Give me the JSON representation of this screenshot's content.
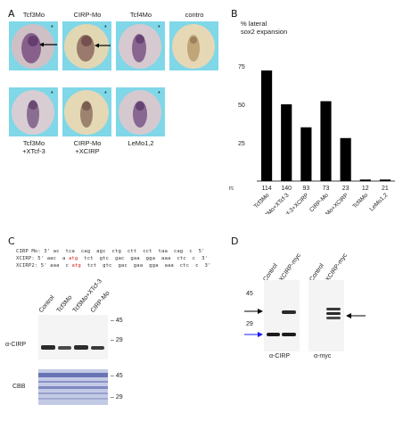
{
  "panel_a": {
    "letter": "A",
    "top_labels": [
      "Tcf3Mo",
      "CIRP-Mo",
      "Tcf4Mo",
      "contro"
    ],
    "bottom_labels": [
      {
        "line1": "Tcf3Mo",
        "line2": "+XTcf-3"
      },
      {
        "line1": "CIRP-Mo",
        "line2": "+XCIRP"
      },
      {
        "line1": "LeMo1,2",
        "line2": ""
      }
    ],
    "marker": "*"
  },
  "panel_b": {
    "letter": "B",
    "title_line1": "% lateral",
    "title_line2": "sox2 expansion",
    "n_prefix": "n:",
    "n_values": [
      "114",
      "140",
      "93",
      "73",
      "23",
      "12",
      "21"
    ]
  },
  "chart_data": {
    "type": "bar",
    "categories": [
      "Tcf3Mo",
      "Tcf3Mo+XTcf-3",
      "Tcf3Mo+XTcf-3+XCIRP",
      "CIRP-Mo",
      "CIRP-Mo+XCIRP",
      "Tcf4Mo",
      "LeMo1,2"
    ],
    "values": [
      72,
      50,
      35,
      52,
      28,
      1,
      1
    ],
    "ylabel": "% lateral sox2 expansion",
    "yticks": [
      "75",
      "50",
      "25"
    ],
    "ylim": [
      0,
      90
    ],
    "bar_color": "#000000"
  },
  "panel_c": {
    "letter": "C",
    "seq_rows": [
      {
        "label": "CIRP Mo:",
        "start": "3'",
        "pre": "",
        "highlight": "",
        "seq": "ac  tca  cag  agc  ctg  ctt  cct  taa  cag  c  5'"
      },
      {
        "label": "XCIRP:",
        "start": "5'",
        "pre": "aac  a ",
        "highlight": "atg",
        "seq": "  tct  gtc  gac  gaa  gga  aaa  ctc  c  3'"
      },
      {
        "label": "XCIRP2:",
        "start": "5'",
        "pre": "aaa  c ",
        "highlight": "atg",
        "seq": "  tct  gtc  gac  gaa  gga  aaa  ctc  c  3'"
      }
    ],
    "lanes": [
      "Control",
      "Tcf3Mo",
      "Tcf3Mo+XTcf-3",
      "CIRP-Mo"
    ],
    "blot_label": "α-CIRP",
    "stain_label": "CBB",
    "markers_top": [
      "45",
      "29"
    ],
    "markers_bottom": [
      "45",
      "29"
    ]
  },
  "panel_d": {
    "letter": "D",
    "lanes_left": [
      "Control",
      "XCIRP-myc"
    ],
    "lanes_right": [
      "Control",
      "XCIRP-myc"
    ],
    "markers": [
      "45",
      "29"
    ],
    "left_label": "α-CIRP",
    "right_label": "α-myc",
    "arrow_color": "#1a1aff"
  }
}
